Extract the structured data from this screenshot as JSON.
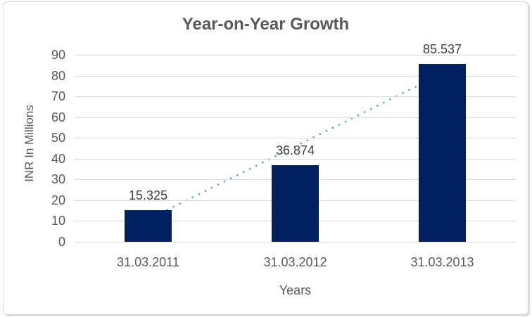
{
  "chart_data": {
    "type": "bar",
    "title": "Year-on-Year Growth",
    "categories": [
      "31.03.2011",
      "31.03.2012",
      "31.03.2013"
    ],
    "values": [
      15.325,
      36.874,
      85.537
    ],
    "data_labels": [
      "15.325",
      "36.874",
      "85.537"
    ],
    "xlabel": "Years",
    "ylabel": "INR In Millions",
    "ylim": [
      0,
      90
    ],
    "yticks": [
      0,
      10,
      20,
      30,
      40,
      50,
      60,
      70,
      80,
      90
    ],
    "grid": "horizontal",
    "legend": "none",
    "bar_color": "#002060",
    "gridline_color": "#d9d9d9",
    "axis_text_color": "#595959",
    "data_label_color": "#404040",
    "title_color": "#595959",
    "trendline": {
      "type": "linear",
      "style": "dotted",
      "color": "#5b9bd5",
      "start_value": 10.8,
      "end_value": 81.0
    }
  }
}
